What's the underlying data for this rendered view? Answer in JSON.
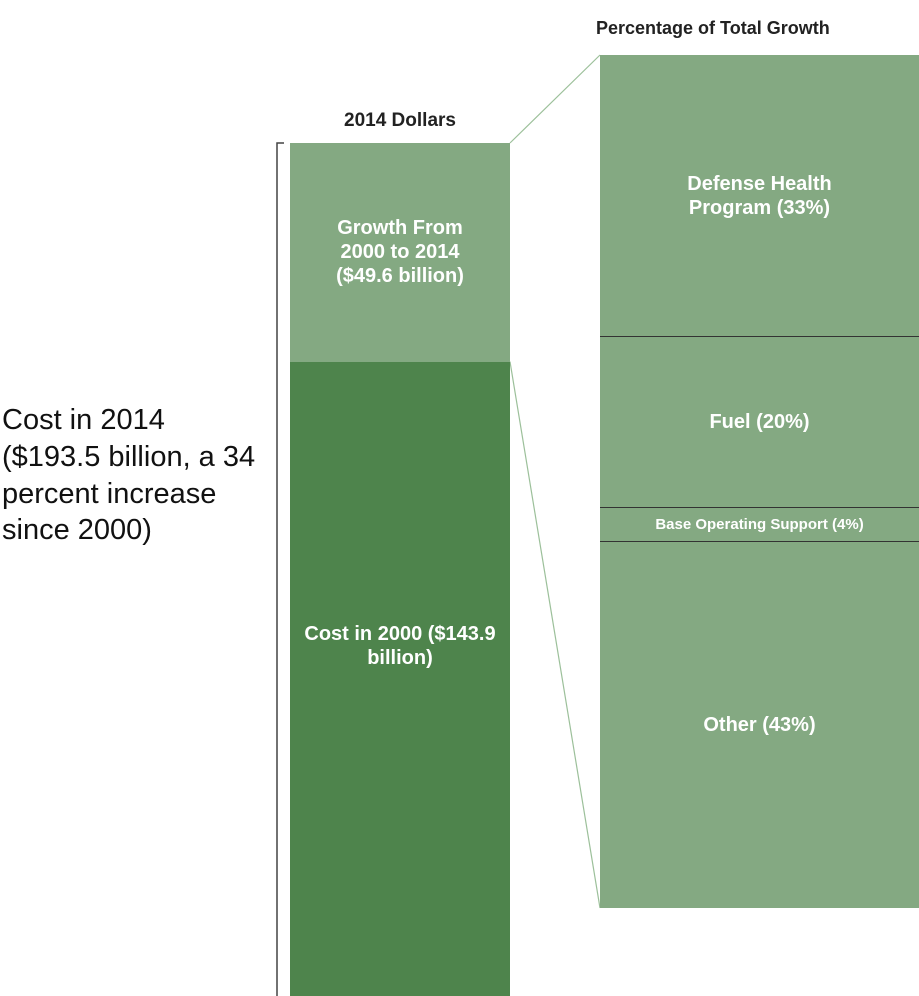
{
  "chart_data": {
    "type": "bar-of-bar",
    "title": "2014 Dollars",
    "categories": [
      "Cost in 2000",
      "Growth From 2000 to 2014"
    ],
    "values": [
      143.9,
      49.6
    ],
    "value_labels": [
      "($143.9 billion)",
      "($49.6 billion)"
    ],
    "colors": [
      "#4e844c",
      "#84a982"
    ],
    "annotation": "Cost in 2014 ($193.5 billion, a 34 percent increase since 2000)",
    "breakdown": {
      "title": "Percentage of Total Growth",
      "categories": [
        "Defense Health Program",
        "Fuel",
        "Base Operating Support",
        "Other"
      ],
      "values": [
        33,
        20,
        4,
        43
      ],
      "value_labels": [
        "(33%)",
        "(20%)",
        "(4%)",
        "(43%)"
      ],
      "color": "#84a982"
    }
  }
}
